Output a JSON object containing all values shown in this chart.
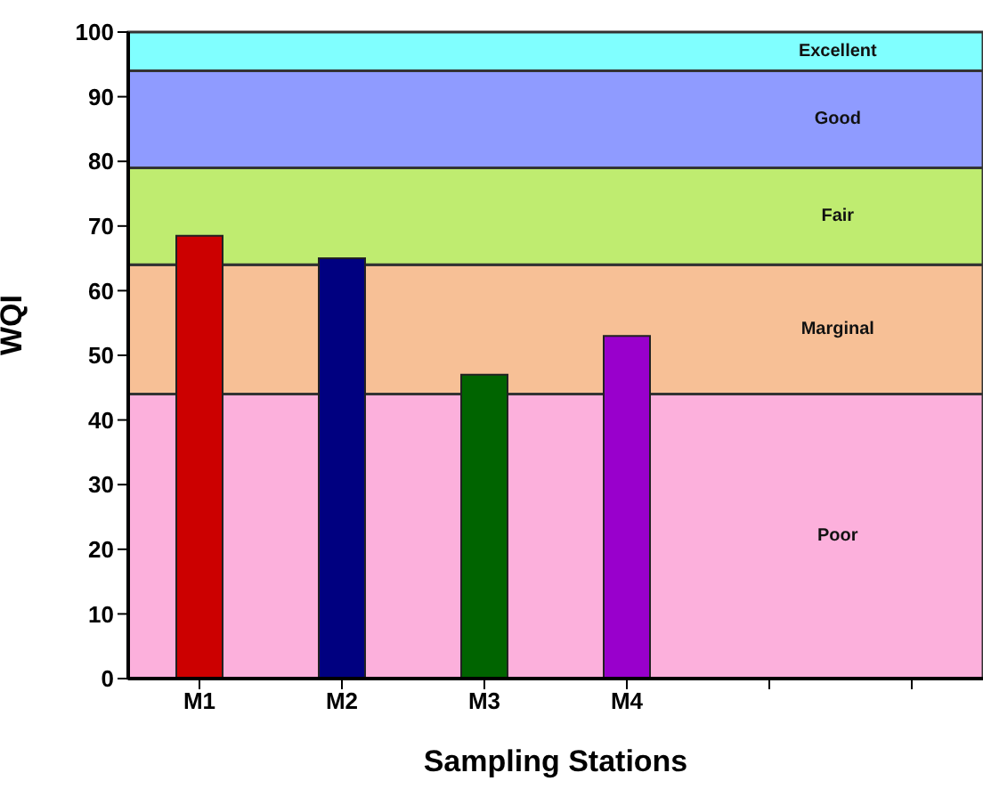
{
  "chart_data": {
    "type": "bar",
    "xlabel": "Sampling Stations",
    "ylabel": "WQI",
    "categories": [
      "M1",
      "M2",
      "M3",
      "M4",
      null,
      null
    ],
    "values": [
      68.5,
      65,
      47,
      53,
      null,
      null
    ],
    "colors": [
      "#cc0000",
      "#000080",
      "#006400",
      "#9900cc",
      "#000000",
      "#000000"
    ],
    "ylim": [
      0,
      100
    ],
    "yticks": [
      0,
      10,
      20,
      30,
      40,
      50,
      60,
      70,
      80,
      90,
      100
    ],
    "bands": [
      {
        "axis": "y",
        "from": 0,
        "to": 44,
        "label": "Poor",
        "color": "#fcb0dc"
      },
      {
        "axis": "y",
        "from": 44,
        "to": 64,
        "label": "Marginal",
        "color": "#f7c096"
      },
      {
        "axis": "y",
        "from": 64,
        "to": 79,
        "label": "Fair",
        "color": "#bfec70"
      },
      {
        "axis": "y",
        "from": 79,
        "to": 94,
        "label": "Good",
        "color": "#8f9bff"
      },
      {
        "axis": "y",
        "from": 94,
        "to": 100,
        "label": "Excellent",
        "color": "#80ffff"
      }
    ]
  }
}
